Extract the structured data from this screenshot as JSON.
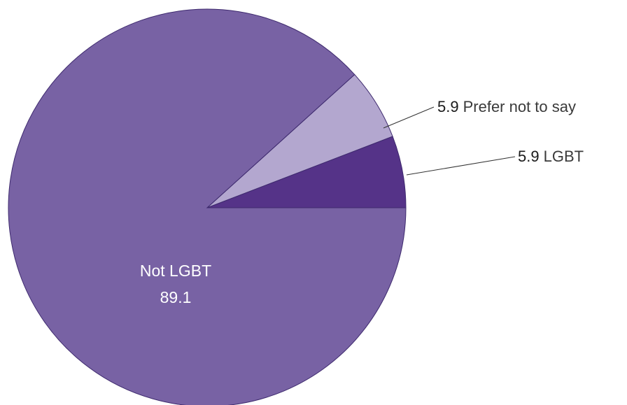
{
  "chart_data": {
    "type": "pie",
    "slices": [
      {
        "label": "LGBT",
        "value": 5.9,
        "value_text": "5.9",
        "color": "#553388"
      },
      {
        "label": "Prefer not to say",
        "value": 5.9,
        "value_text": "5.9",
        "color": "#b3a7cf"
      },
      {
        "label": "Not LGBT",
        "value": 89.1,
        "value_text": "89.1",
        "color": "#7862a4"
      }
    ],
    "start": "3 o'clock",
    "direction": "counterclockwise",
    "stroke_color": "#3e2a6e"
  }
}
